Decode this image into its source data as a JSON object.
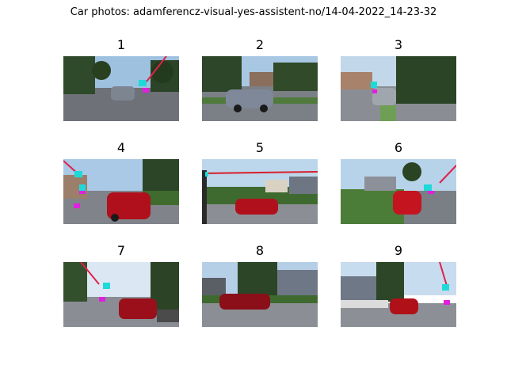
{
  "figure": {
    "title": "Car photos: adamferencz-visual-yes-assistent-no/14-04-2022_14-23-32"
  },
  "panels": [
    {
      "label": "1",
      "car_color": "#7d8591",
      "marker": "cyan-magenta"
    },
    {
      "label": "2",
      "car_color": "#7f8899",
      "marker": "none"
    },
    {
      "label": "3",
      "car_color": "#a0a6ad",
      "marker": "cyan-magenta"
    },
    {
      "label": "4",
      "car_color": "#b0101c",
      "marker": "cyan-magenta"
    },
    {
      "label": "5",
      "car_color": "#b0101c",
      "marker": "red-line"
    },
    {
      "label": "6",
      "car_color": "#c41420",
      "marker": "cyan-magenta"
    },
    {
      "label": "7",
      "car_color": "#9a0f1a",
      "marker": "cyan-magenta"
    },
    {
      "label": "8",
      "car_color": "#8a0f18",
      "marker": "none"
    },
    {
      "label": "9",
      "car_color": "#b01018",
      "marker": "cyan-magenta"
    }
  ]
}
